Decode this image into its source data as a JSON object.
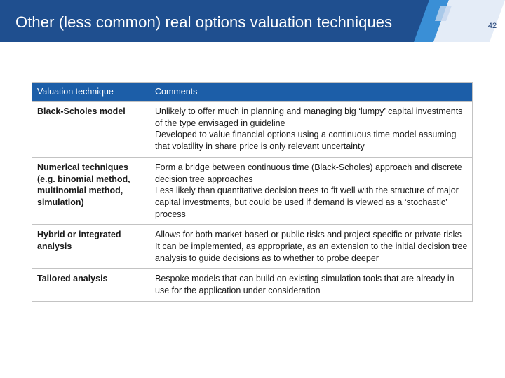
{
  "header": {
    "title": "Other (less common) real options valuation techniques",
    "page_number": "42",
    "colors": {
      "primary": "#1f4f8f",
      "accent": "#3a8fd6",
      "light": "#c5d7ee"
    }
  },
  "table": {
    "columns": [
      "Valuation technique",
      "Comments"
    ],
    "rows": [
      {
        "technique": "Black-Scholes model",
        "comments": [
          "Unlikely to offer much in planning and managing big ‘lumpy’ capital investments of the type envisaged in guideline",
          "Developed to value financial options using a continuous time model assuming that volatility in share price is only relevant uncertainty"
        ]
      },
      {
        "technique": "Numerical techniques (e.g. binomial method, multinomial method, simulation)",
        "comments": [
          "Form a bridge between continuous time (Black-Scholes) approach and discrete decision tree approaches",
          "Less likely than quantitative decision trees to fit well with the structure of major capital investments, but could be used if demand is viewed as a ‘stochastic’ process"
        ]
      },
      {
        "technique": "Hybrid or integrated analysis",
        "comments": [
          "Allows for both market-based or public risks and project specific or private risks",
          "It can be implemented, as appropriate, as an extension to the initial decision tree analysis to guide decisions as to whether to probe deeper"
        ]
      },
      {
        "technique": "Tailored analysis",
        "comments": [
          "Bespoke models that can build on existing simulation tools that are already in use for the application under consideration"
        ]
      }
    ]
  }
}
